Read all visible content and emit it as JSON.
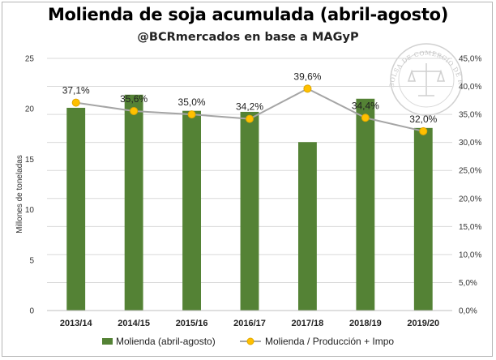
{
  "title": "Molienda de soja acumulada (abril-agosto)",
  "subtitle": "@BCRmercados en base a MAGyP",
  "watermark_text": "BOLSA DE COMERCIO DE ROSARIO",
  "colors": {
    "bar": "#548235",
    "line": "#a5a5a5",
    "marker": "#ffc000",
    "marker_edge": "#e0a800",
    "grid": "#d9d9d9"
  },
  "chart_data": {
    "type": "bar",
    "categories": [
      "2013/14",
      "2014/15",
      "2015/16",
      "2016/17",
      "2017/18",
      "2018/19",
      "2019/20"
    ],
    "series": [
      {
        "name": "Molienda (abril-agosto)",
        "type": "bar",
        "axis": "left",
        "values": [
          20.1,
          21.4,
          19.8,
          19.7,
          16.7,
          21.0,
          18.1
        ]
      },
      {
        "name": "Molienda / Producción + Impo",
        "type": "line",
        "axis": "right",
        "values": [
          37.1,
          35.6,
          35.0,
          34.2,
          39.6,
          34.4,
          32.0
        ],
        "labels": [
          "37,1%",
          "35,6%",
          "35,0%",
          "34,2%",
          "39,6%",
          "34,4%",
          "32,0%"
        ]
      }
    ],
    "ylabel": "Millones de toneladas",
    "ylim": [
      0,
      25
    ],
    "yticks": [
      "0",
      "5",
      "10",
      "15",
      "20",
      "25"
    ],
    "y2lim": [
      0,
      45
    ],
    "y2ticks": [
      "0,0%",
      "5,0%",
      "10,0%",
      "15,0%",
      "20,0%",
      "25,0%",
      "30,0%",
      "35,0%",
      "40,0%",
      "45,0%"
    ],
    "grid": true,
    "legend": "bottom"
  }
}
